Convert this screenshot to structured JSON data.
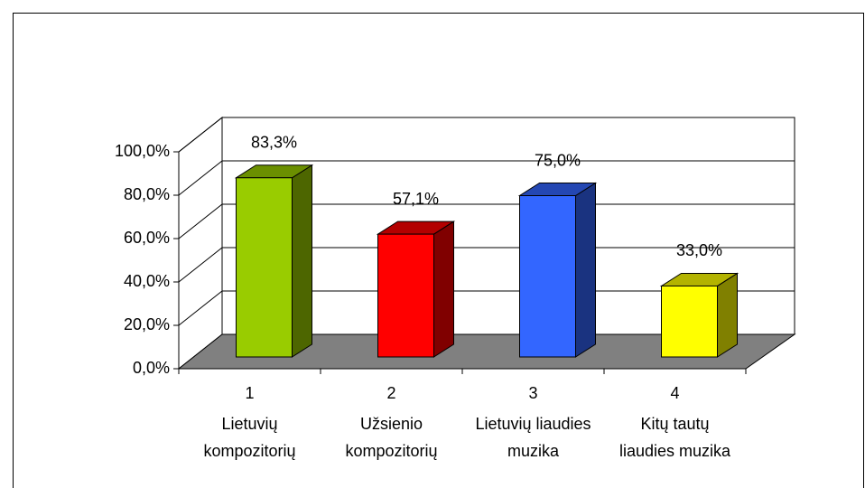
{
  "chart_data": {
    "type": "bar3d",
    "categories": [
      "1",
      "2",
      "3",
      "4"
    ],
    "category_descriptions": [
      [
        "Lietuvių",
        "kompozitorių"
      ],
      [
        "Užsienio",
        "kompozitorių"
      ],
      [
        "Lietuvių liaudies",
        "muzika"
      ],
      [
        "Kitų tautų",
        "liaudies muzika"
      ]
    ],
    "values": [
      83.3,
      57.1,
      75.0,
      33.0
    ],
    "value_labels": [
      "83,3%",
      "57,1%",
      "75,0%",
      "33,0%"
    ],
    "colors": [
      "#99cc00",
      "#ff0000",
      "#3366ff",
      "#ffff00"
    ],
    "ylim": [
      0,
      100
    ],
    "yticks": [
      {
        "value": 0,
        "label": "0,0%"
      },
      {
        "value": 20,
        "label": "20,0%"
      },
      {
        "value": 40,
        "label": "40,0%"
      },
      {
        "value": 60,
        "label": "60,0%"
      },
      {
        "value": 80,
        "label": "80,0%"
      },
      {
        "value": 100,
        "label": "100,0%"
      }
    ],
    "grid": true
  }
}
